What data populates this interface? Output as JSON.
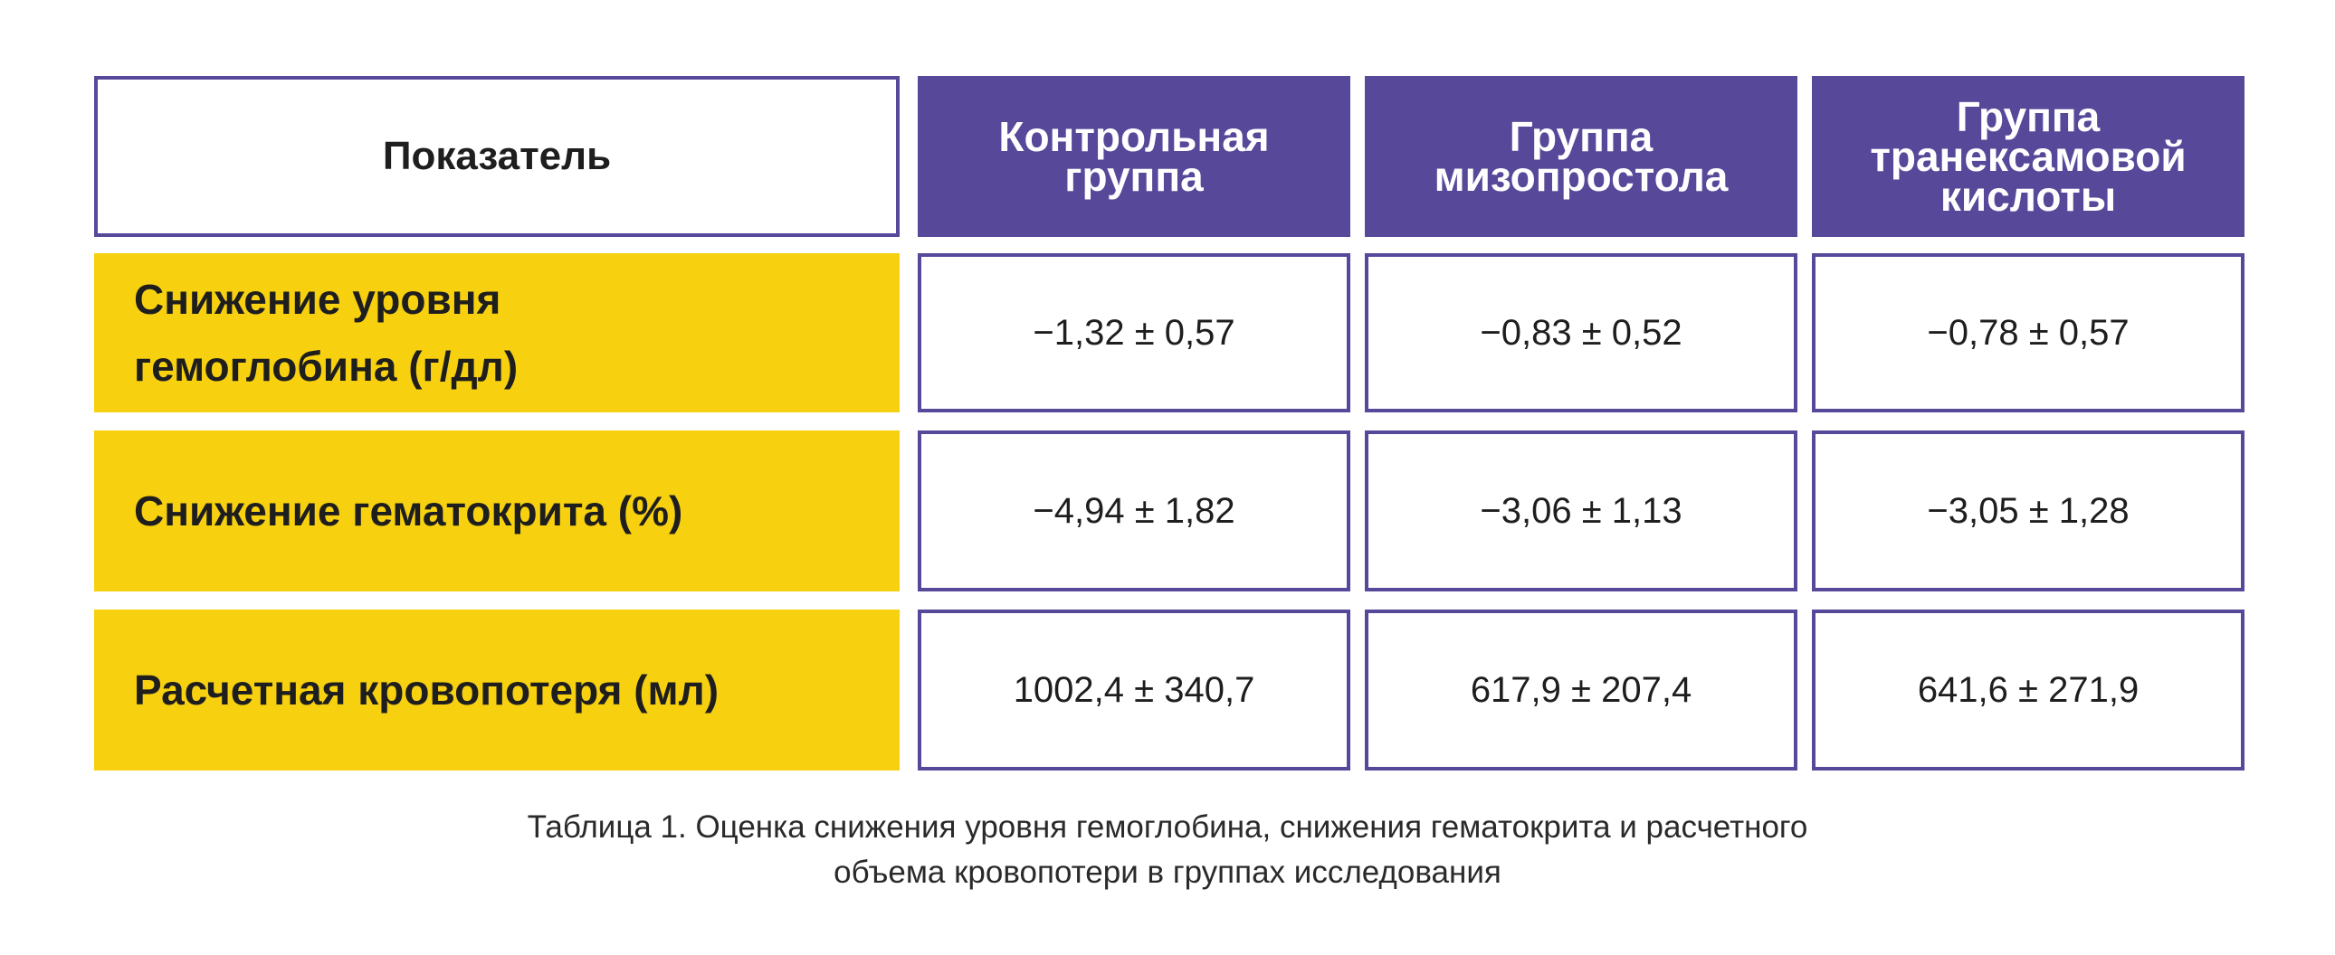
{
  "table": {
    "header": {
      "indicator": "Показатель",
      "control": "Контрольная\nгруппа",
      "misoprostol": "Группа\nмизопростола",
      "tranexamic": "Группа\nтранексамовой\nкислоты"
    },
    "rows": [
      {
        "label": "Снижение уровня\nгемоглобина (г/дл)",
        "control": "−1,32 ± 0,57",
        "misoprostol": "−0,83 ± 0,52",
        "tranexamic": "−0,78 ± 0,57"
      },
      {
        "label": "Снижение гематокрита (%)",
        "control": "−4,94 ± 1,82",
        "misoprostol": "−3,06 ± 1,13",
        "tranexamic": "−3,05 ± 1,28"
      },
      {
        "label": "Расчетная кровопотеря (мл)",
        "control": "1002,4 ± 340,7",
        "misoprostol": "617,9 ± 207,4",
        "tranexamic": "641,6 ± 271,9"
      }
    ]
  },
  "caption": "Таблица 1. Оценка снижения уровня гемоглобина, снижения гематокрита и расчетного\nобъема кровопотери в группах исследования",
  "colors": {
    "accent_purple": "#57489a",
    "label_yellow": "#f7d10f"
  }
}
